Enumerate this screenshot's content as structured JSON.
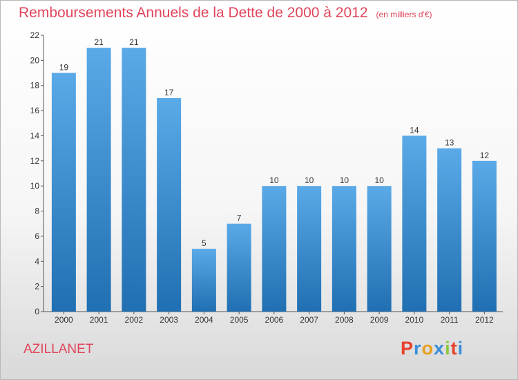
{
  "header": {
    "title": "Remboursements Annuels de la Dette de 2000 à 2012",
    "subtitle": "(en milliers d'€)"
  },
  "footer": {
    "place": "AZILLANET",
    "logo": "Proxiti"
  },
  "colors": {
    "title": "#e0455b",
    "bar_top": "#5aaae8",
    "bar_bottom": "#1f6fb2",
    "logo_letters": [
      "#e8402a",
      "#3a8ed8",
      "#e8a020",
      "#3a8ed8",
      "#8cc63f",
      "#e8402a",
      "#3a8ed8"
    ]
  },
  "chart_data": {
    "type": "bar",
    "title": "Remboursements Annuels de la Dette de 2000 à 2012",
    "subtitle": "(en milliers d'€)",
    "xlabel": "",
    "ylabel": "",
    "categories": [
      "2000",
      "2001",
      "2002",
      "2003",
      "2004",
      "2005",
      "2006",
      "2007",
      "2008",
      "2009",
      "2010",
      "2011",
      "2012"
    ],
    "values": [
      19,
      21,
      21,
      17,
      5,
      7,
      10,
      10,
      10,
      10,
      14,
      13,
      12
    ],
    "ylim": [
      0,
      22
    ],
    "yticks": [
      0,
      2,
      4,
      6,
      8,
      10,
      12,
      14,
      16,
      18,
      20,
      22
    ],
    "grid": false,
    "data_labels": true
  }
}
